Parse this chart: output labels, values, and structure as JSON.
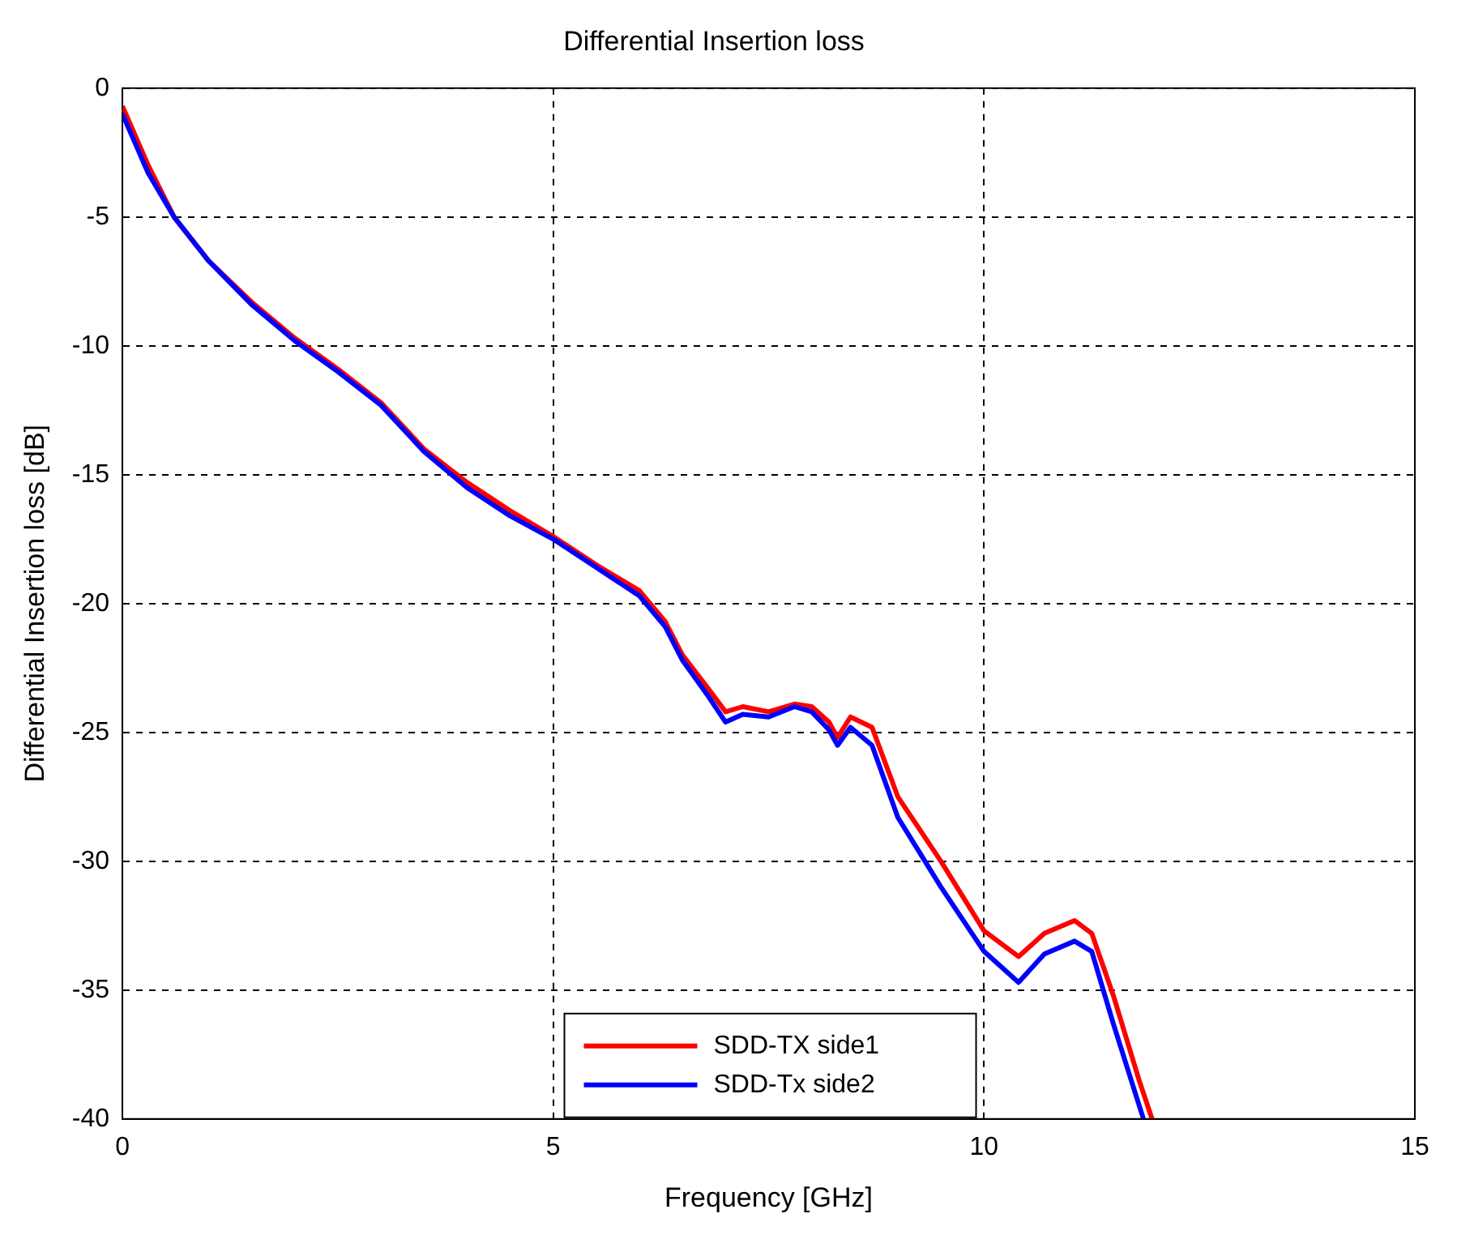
{
  "chart_data": {
    "type": "line",
    "title": "Differential Insertion loss",
    "xlabel": "Frequency [GHz]",
    "ylabel": "Differential Insertion loss [dB]",
    "xlim": [
      0,
      15
    ],
    "xticks": [
      0,
      5,
      10,
      15
    ],
    "ylim": [
      -40,
      0
    ],
    "yticks": [
      -40,
      -35,
      -30,
      -25,
      -20,
      -15,
      -10,
      -5,
      0
    ],
    "grid": true,
    "legend": "bottom",
    "line_style": "solid",
    "marker": "none",
    "series": [
      {
        "name": "SDD-TX side1",
        "color": "#ff0000",
        "x": [
          0,
          0.3,
          0.6,
          1,
          1.5,
          2,
          2.5,
          3,
          3.5,
          4,
          4.5,
          5,
          5.5,
          6,
          6.3,
          6.5,
          6.8,
          7,
          7.2,
          7.5,
          7.8,
          8,
          8.2,
          8.3,
          8.45,
          8.7,
          9,
          9.5,
          10,
          10.4,
          10.7,
          11.05,
          11.25,
          11.5,
          11.8,
          11.95
        ],
        "values": [
          -0.7,
          -3,
          -5,
          -6.7,
          -8.3,
          -9.7,
          -10.9,
          -12.2,
          -14,
          -15.3,
          -16.4,
          -17.4,
          -18.5,
          -19.5,
          -20.7,
          -22,
          -23.3,
          -24.2,
          -24,
          -24.2,
          -23.9,
          -24,
          -24.6,
          -25.2,
          -24.4,
          -24.8,
          -27.5,
          -30,
          -32.7,
          -33.7,
          -32.8,
          -32.3,
          -32.8,
          -35.2,
          -38.5,
          -40
        ]
      },
      {
        "name": "SDD-Tx side2",
        "color": "#0000ff",
        "x": [
          0,
          0.3,
          0.6,
          1,
          1.5,
          2,
          2.5,
          3,
          3.5,
          4,
          4.5,
          5,
          5.5,
          6,
          6.3,
          6.5,
          6.8,
          7,
          7.2,
          7.5,
          7.8,
          8,
          8.2,
          8.3,
          8.45,
          8.7,
          9,
          9.5,
          10,
          10.4,
          10.7,
          11.05,
          11.25,
          11.5,
          11.85
        ],
        "values": [
          -1,
          -3.3,
          -5,
          -6.7,
          -8.4,
          -9.8,
          -11,
          -12.3,
          -14.1,
          -15.5,
          -16.6,
          -17.5,
          -18.6,
          -19.7,
          -20.9,
          -22.2,
          -23.6,
          -24.6,
          -24.3,
          -24.4,
          -24,
          -24.2,
          -24.9,
          -25.5,
          -24.8,
          -25.5,
          -28.3,
          -31,
          -33.5,
          -34.7,
          -33.6,
          -33.1,
          -33.5,
          -36.3,
          -40
        ]
      }
    ]
  }
}
